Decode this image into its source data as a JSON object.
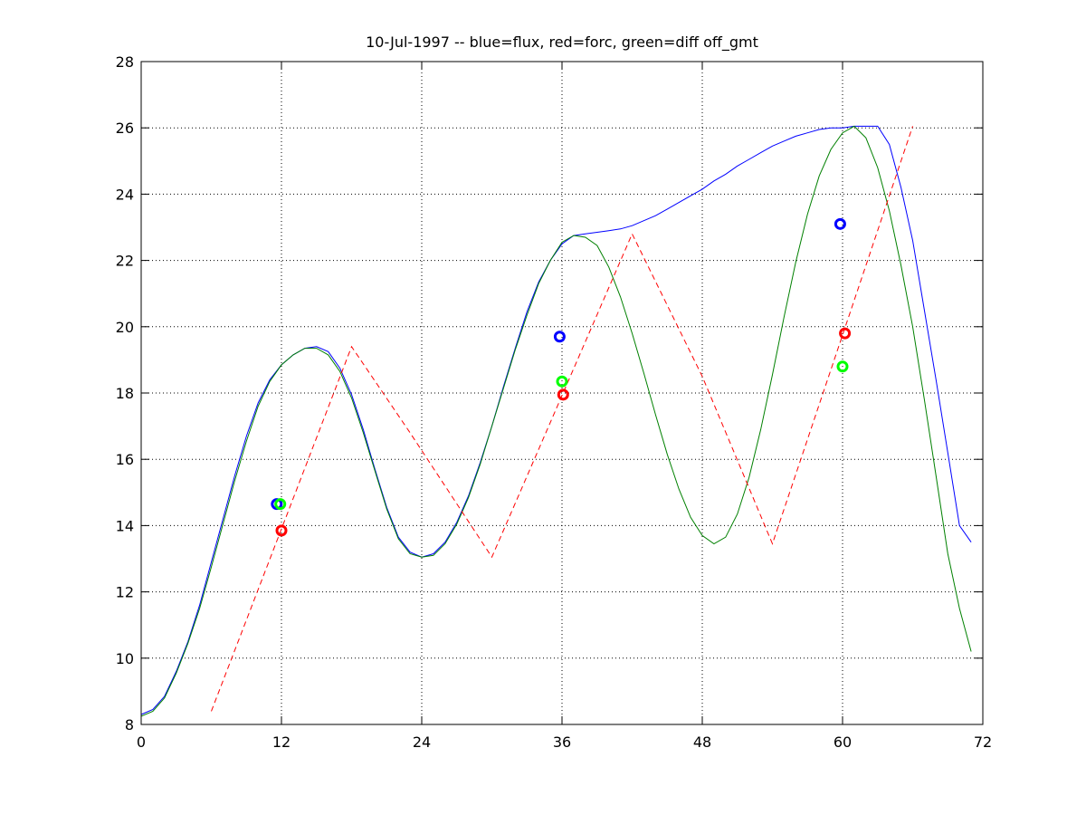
{
  "chart_data": {
    "type": "line",
    "title": "10-Jul-1997 -- blue=flux, red=forc, green=diff off_gmt",
    "xlabel": "",
    "ylabel": "",
    "xlim": [
      0,
      72
    ],
    "ylim": [
      8,
      28
    ],
    "xticks": [
      0,
      12,
      24,
      36,
      48,
      60,
      72
    ],
    "yticks": [
      8,
      10,
      12,
      14,
      16,
      18,
      20,
      22,
      24,
      26,
      28
    ],
    "grid": true,
    "colors": {
      "blue": "#0000ff",
      "red": "#ff0000",
      "green": "#008000",
      "green_marker": "#00ff00"
    },
    "series": [
      {
        "color": "blue",
        "style": "solid",
        "x": [
          0,
          1,
          2,
          3,
          4,
          5,
          6,
          7,
          8,
          9,
          10,
          11,
          12,
          13,
          14,
          15,
          16,
          17,
          18,
          19,
          20,
          21,
          22,
          23,
          24,
          25,
          26,
          27,
          28,
          29,
          30,
          31,
          32,
          33,
          34,
          35,
          36,
          37,
          38,
          39,
          40,
          41,
          42,
          43,
          44,
          45,
          46,
          47,
          48,
          49,
          50,
          51,
          52,
          53,
          54,
          55,
          56,
          57,
          58,
          59,
          60,
          61,
          62,
          63,
          64,
          65,
          66,
          67,
          68,
          69,
          70,
          71
        ],
        "y": [
          8.3,
          8.45,
          8.85,
          9.6,
          10.5,
          11.6,
          12.9,
          14.2,
          15.5,
          16.7,
          17.7,
          18.4,
          18.85,
          19.15,
          19.35,
          19.4,
          19.25,
          18.75,
          17.95,
          16.9,
          15.7,
          14.55,
          13.65,
          13.2,
          13.05,
          13.15,
          13.5,
          14.1,
          14.9,
          15.9,
          17.0,
          18.2,
          19.35,
          20.45,
          21.35,
          22.0,
          22.5,
          22.75,
          22.8,
          22.85,
          22.9,
          22.95,
          23.05,
          23.2,
          23.35,
          23.55,
          23.75,
          23.95,
          24.15,
          24.4,
          24.6,
          24.85,
          25.05,
          25.25,
          25.45,
          25.6,
          25.75,
          25.85,
          25.95,
          26.0,
          26.0,
          26.05,
          26.05,
          26.05,
          25.5,
          24.2,
          22.6,
          20.5,
          18.4,
          16.2,
          14.0,
          13.5
        ]
      },
      {
        "color": "green",
        "style": "solid",
        "x": [
          0,
          1,
          2,
          3,
          4,
          5,
          6,
          7,
          8,
          9,
          10,
          11,
          12,
          13,
          14,
          15,
          16,
          17,
          18,
          19,
          20,
          21,
          22,
          23,
          24,
          25,
          26,
          27,
          28,
          29,
          30,
          31,
          32,
          33,
          34,
          35,
          36,
          37,
          38,
          39,
          40,
          41,
          42,
          43,
          44,
          45,
          46,
          47,
          48,
          49,
          50,
          51,
          52,
          53,
          54,
          55,
          56,
          57,
          58,
          59,
          60,
          61,
          62,
          63,
          64,
          65,
          66,
          67,
          68,
          69,
          70,
          71
        ],
        "y": [
          8.25,
          8.4,
          8.8,
          9.55,
          10.45,
          11.5,
          12.75,
          14.05,
          15.35,
          16.55,
          17.6,
          18.35,
          18.85,
          19.15,
          19.35,
          19.35,
          19.15,
          18.65,
          17.85,
          16.8,
          15.65,
          14.5,
          13.6,
          13.15,
          13.05,
          13.1,
          13.45,
          14.05,
          14.85,
          15.85,
          17.0,
          18.15,
          19.3,
          20.35,
          21.3,
          22.0,
          22.55,
          22.75,
          22.7,
          22.45,
          21.8,
          20.9,
          19.8,
          18.6,
          17.35,
          16.15,
          15.1,
          14.25,
          13.7,
          13.45,
          13.65,
          14.35,
          15.45,
          16.9,
          18.55,
          20.3,
          21.95,
          23.4,
          24.55,
          25.35,
          25.85,
          26.05,
          25.7,
          24.8,
          23.5,
          21.85,
          20.0,
          17.8,
          15.5,
          13.15,
          11.5,
          10.2
        ]
      },
      {
        "color": "red",
        "style": "dashed",
        "x": [
          6,
          18,
          23,
          30,
          42,
          48,
          54,
          66
        ],
        "y": [
          8.4,
          19.4,
          16.8,
          13.05,
          22.8,
          18.5,
          13.45,
          26.05
        ]
      }
    ],
    "markers": [
      {
        "color": "blue",
        "x": 11.6,
        "y": 14.65
      },
      {
        "color": "green",
        "x": 11.9,
        "y": 14.65
      },
      {
        "color": "red",
        "x": 12.0,
        "y": 13.85
      },
      {
        "color": "blue",
        "x": 35.8,
        "y": 19.7
      },
      {
        "color": "green",
        "x": 36.0,
        "y": 18.35
      },
      {
        "color": "red",
        "x": 36.1,
        "y": 17.95
      },
      {
        "color": "blue",
        "x": 59.8,
        "y": 23.1
      },
      {
        "color": "red",
        "x": 60.2,
        "y": 19.8
      },
      {
        "color": "green",
        "x": 60.0,
        "y": 18.8
      }
    ]
  }
}
